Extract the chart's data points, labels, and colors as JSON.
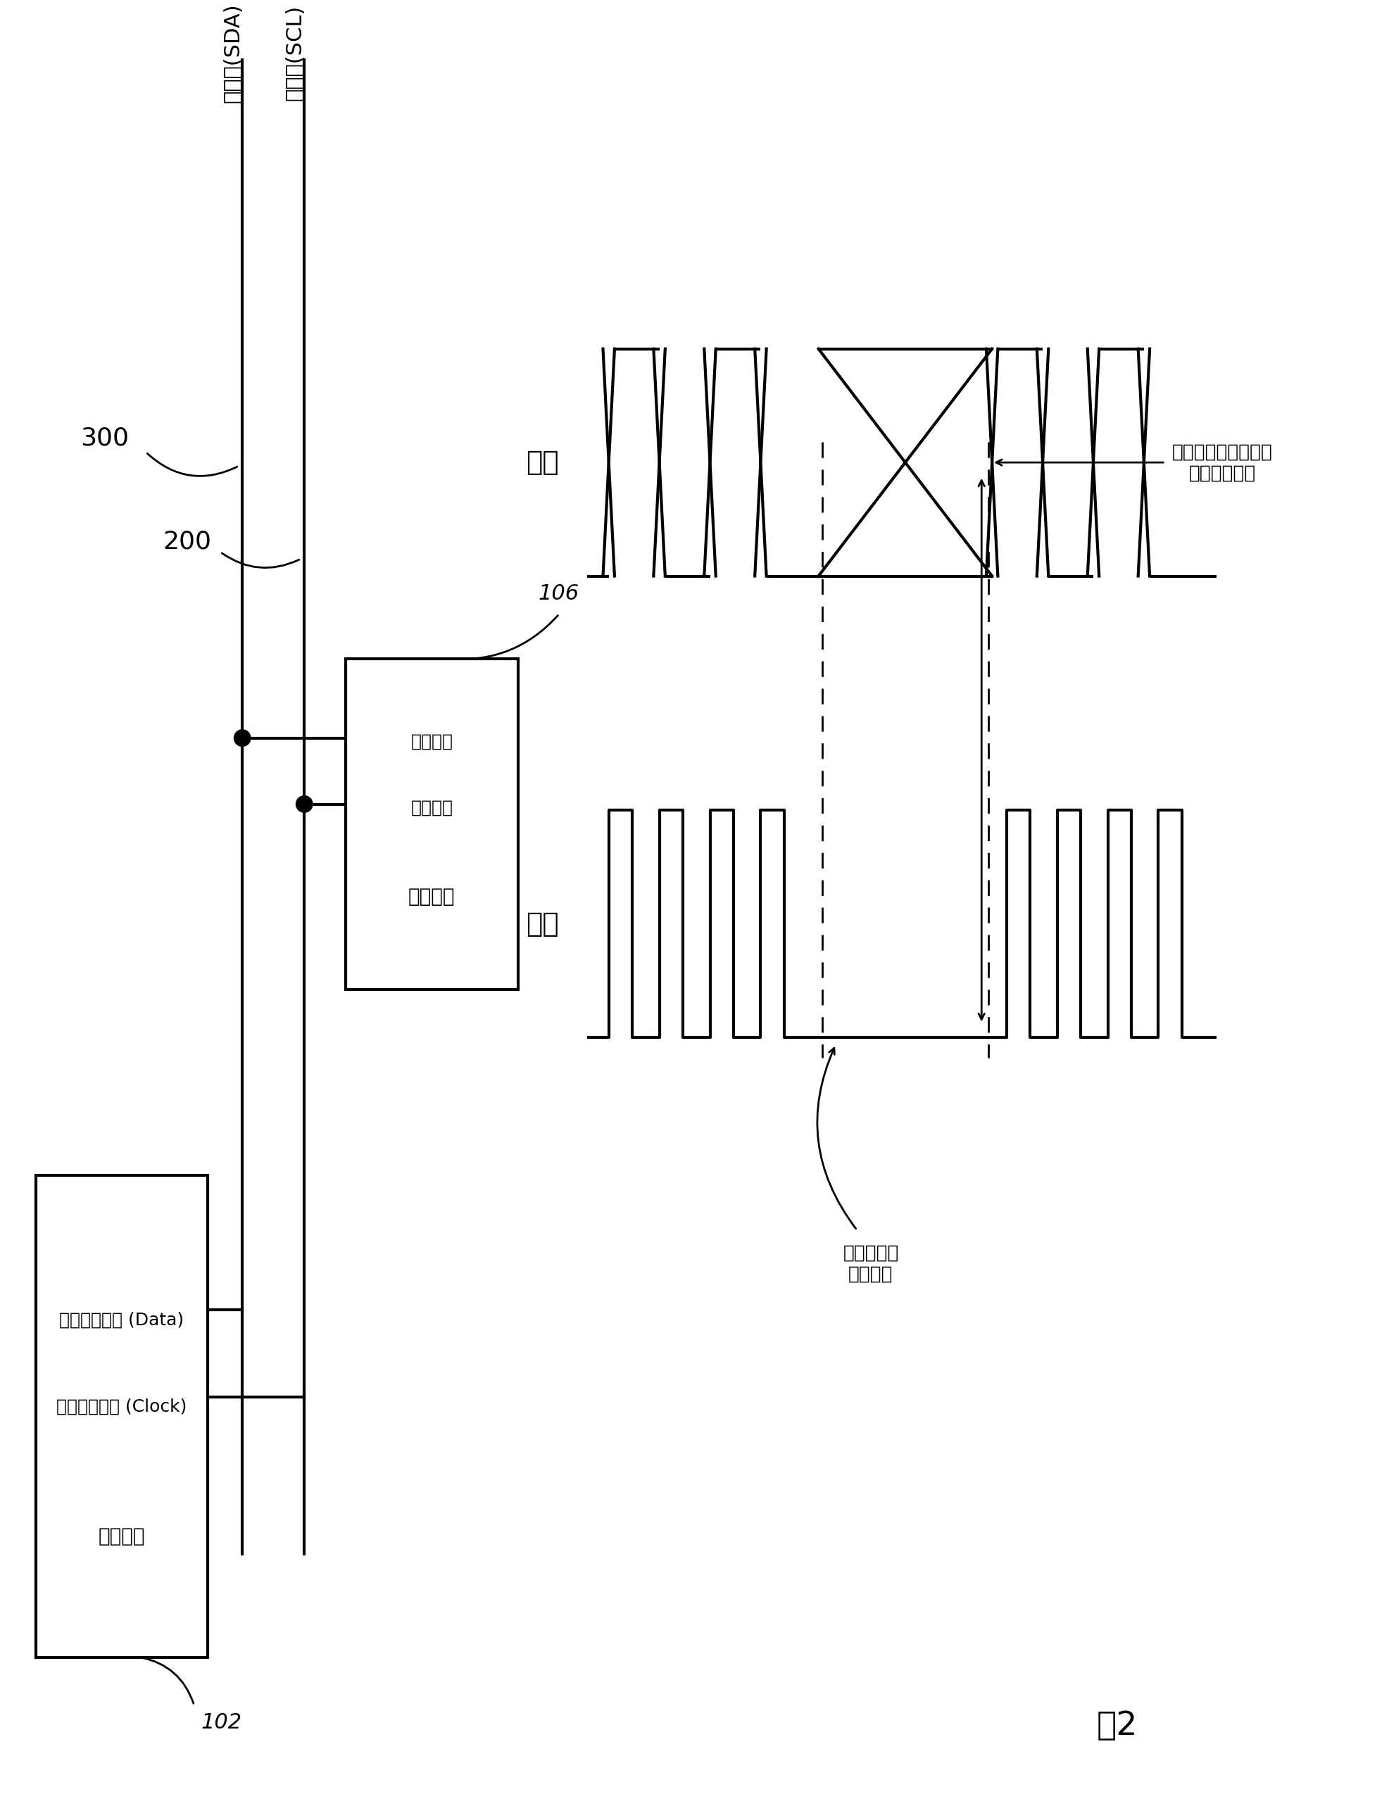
{
  "bg_color": "#ffffff",
  "line_color": "#000000",
  "fig_width": 19.73,
  "fig_height": 25.59,
  "master_box_label1": "第一输出端口 (Data)",
  "master_box_label2": "第二输出端口 (Clock)",
  "master_box_label3": "主控元件",
  "slave_box_label1": "数据端口",
  "slave_box_label2": "时钒端口",
  "slave_box_label3": "被控元件",
  "sda_label": "数据线(SDA)",
  "scl_label": "时钒线(SCL)",
  "label_300": "300",
  "label_200": "200",
  "label_102": "102",
  "label_106": "106",
  "data_label": "数据",
  "clock_label": "时钒",
  "annotation1_line1": "开始从第二输出端口",
  "annotation1_line2": "传送时钒脉冲",
  "annotation2_line1": "时钒被暂持",
  "annotation2_line2": "（超时）",
  "fig2_label": "图2"
}
